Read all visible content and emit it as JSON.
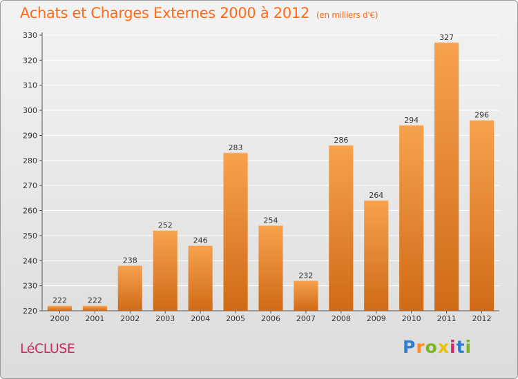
{
  "header": {
    "title": "Achats et Charges Externes 2000 à 2012",
    "unit": "(en milliers d'€)"
  },
  "commune": "LéCLUSE",
  "logo": {
    "letters": [
      "P",
      "r",
      "o",
      "x",
      "i",
      "t",
      "i"
    ],
    "colors": [
      "#2a7fd4",
      "#ff8a1f",
      "#7ab51d",
      "#f0c000",
      "#d02a6e",
      "#2a7fd4",
      "#7ab51d"
    ]
  },
  "colors": {
    "bar_top": "#f7a24e",
    "bar_bottom": "#d06a16",
    "title": "#ff6a1a",
    "commune": "#c8285a"
  },
  "chart_data": {
    "type": "bar",
    "title": "Achats et Charges Externes 2000 à 2012",
    "subtitle": "(en milliers d'€)",
    "categories": [
      "2000",
      "2001",
      "2002",
      "2003",
      "2004",
      "2005",
      "2006",
      "2007",
      "2008",
      "2009",
      "2010",
      "2011",
      "2012"
    ],
    "values": [
      222,
      222,
      238,
      252,
      246,
      283,
      254,
      232,
      286,
      264,
      294,
      327,
      296
    ],
    "ylim": [
      220,
      330
    ],
    "yticks": [
      220,
      230,
      240,
      250,
      260,
      270,
      280,
      290,
      300,
      310,
      320,
      330
    ],
    "grid": true,
    "xlabel": "",
    "ylabel": ""
  }
}
